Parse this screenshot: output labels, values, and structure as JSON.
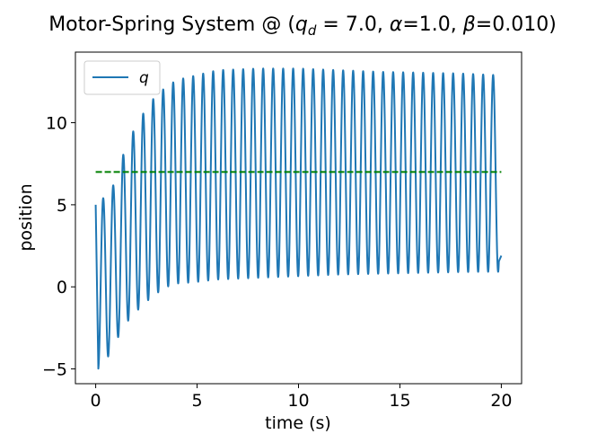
{
  "chart_data": {
    "type": "line",
    "title": {
      "prefix": "Motor-Spring System @ (",
      "q_symbol": "q",
      "q_subscript": "d",
      "q_value": " = 7.0, ",
      "alpha_symbol": "α",
      "alpha_value": "=1.0, ",
      "beta_symbol": "β",
      "beta_value": "=0.010)"
    },
    "xlabel": "time (s)",
    "ylabel": "position",
    "xlim": [
      -1.0,
      21.0
    ],
    "ylim": [
      -5.9,
      14.3
    ],
    "xticks": [
      {
        "value": 0,
        "label": "0"
      },
      {
        "value": 5,
        "label": "5"
      },
      {
        "value": 10,
        "label": "10"
      },
      {
        "value": 15,
        "label": "15"
      },
      {
        "value": 20,
        "label": "20"
      }
    ],
    "yticks": [
      {
        "value": -5,
        "label": "−5"
      },
      {
        "value": 0,
        "label": "0"
      },
      {
        "value": 5,
        "label": "5"
      },
      {
        "value": 10,
        "label": "10"
      }
    ],
    "grid": false,
    "legend": {
      "position": "upper-left",
      "entries": [
        {
          "label": "q",
          "color": "#1f77b4"
        }
      ]
    },
    "series": [
      {
        "name": "q",
        "style": "solid",
        "color": "#1f77b4",
        "oscillation": {
          "period": 0.493,
          "t_start": 0.0,
          "t_end": 20.0,
          "y_start": 5.0,
          "y_end": 1.9,
          "first_peak_time": 0.37,
          "first_trough_time": 0.13,
          "peaks": [
            [
              0.37,
              5.4
            ],
            [
              1.0,
              6.4
            ],
            [
              1.5,
              8.7
            ],
            [
              2.0,
              9.8
            ],
            [
              2.5,
              10.9
            ],
            [
              3.0,
              11.7
            ],
            [
              3.5,
              12.2
            ],
            [
              4.0,
              12.6
            ],
            [
              5.0,
              12.9
            ],
            [
              6.0,
              13.2
            ],
            [
              8.0,
              13.3
            ],
            [
              10.0,
              13.3
            ],
            [
              12.0,
              13.2
            ],
            [
              14.0,
              13.1
            ],
            [
              16.0,
              13.05
            ],
            [
              18.0,
              13.0
            ],
            [
              19.8,
              12.9
            ]
          ],
          "troughs": [
            [
              0.13,
              -5.0
            ],
            [
              0.55,
              -4.4
            ],
            [
              1.0,
              -3.3
            ],
            [
              1.5,
              -2.2
            ],
            [
              2.0,
              -1.5
            ],
            [
              2.5,
              -0.9
            ],
            [
              3.0,
              -0.4
            ],
            [
              3.5,
              0.0
            ],
            [
              4.0,
              0.2
            ],
            [
              5.0,
              0.3
            ],
            [
              6.0,
              0.45
            ],
            [
              8.0,
              0.55
            ],
            [
              10.0,
              0.65
            ],
            [
              12.0,
              0.75
            ],
            [
              14.0,
              0.8
            ],
            [
              16.0,
              0.85
            ],
            [
              18.0,
              0.9
            ],
            [
              19.6,
              0.92
            ]
          ]
        }
      },
      {
        "name": "q_d",
        "style": "dashed",
        "color": "#008000",
        "x": [
          0,
          20
        ],
        "y": [
          7.0,
          7.0
        ]
      }
    ]
  }
}
